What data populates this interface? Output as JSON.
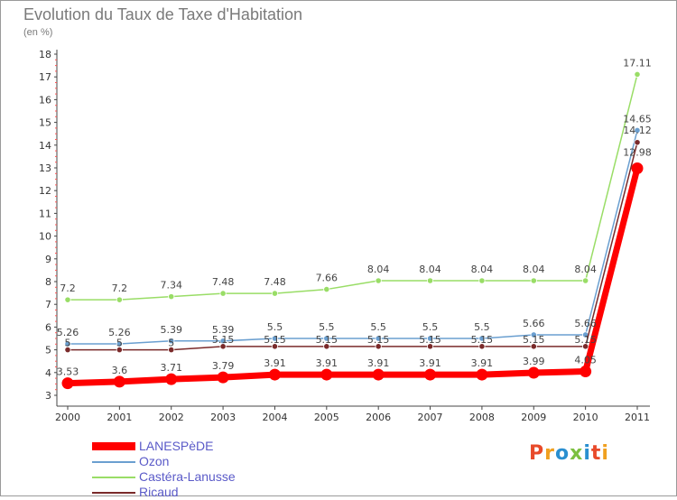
{
  "header": {
    "title": "Evolution du Taux de Taxe d'Habitation",
    "subtitle": "(en %)"
  },
  "chart_data": {
    "type": "line",
    "title": "Evolution du Taux de Taxe d'Habitation",
    "subtitle": "(en %)",
    "xlabel": "",
    "ylabel": "",
    "x": [
      "2000",
      "2001",
      "2002",
      "2003",
      "2004",
      "2005",
      "2006",
      "2007",
      "2008",
      "2009",
      "2010",
      "2011"
    ],
    "ylim": [
      3,
      18
    ],
    "yticks": [
      3,
      4,
      5,
      6,
      7,
      8,
      9,
      10,
      11,
      12,
      13,
      14,
      15,
      16,
      17,
      18
    ],
    "grid": false,
    "legend_position": "bottom-left",
    "series": [
      {
        "name": "LANESPèDE",
        "color": "#ff0000",
        "values": [
          3.53,
          3.6,
          3.71,
          3.79,
          3.91,
          3.91,
          3.91,
          3.91,
          3.91,
          3.99,
          4.05,
          12.98
        ],
        "labels": [
          "3.53",
          "3.6",
          "3.71",
          "3.79",
          "3.91",
          "3.91",
          "3.91",
          "3.91",
          "3.91",
          "3.99",
          "4.05",
          "12.98"
        ]
      },
      {
        "name": "Ozon",
        "color": "#6a9fd0",
        "values": [
          5.26,
          5.26,
          5.39,
          5.39,
          5.5,
          5.5,
          5.5,
          5.5,
          5.5,
          5.66,
          5.66,
          14.65
        ],
        "labels": [
          "5.26",
          "5.26",
          "5.39",
          "5.39",
          "5.5",
          "5.5",
          "5.5",
          "5.5",
          "5.5",
          "5.66",
          "5.66",
          "14.65"
        ]
      },
      {
        "name": "Castéra-Lanusse",
        "color": "#99dd66",
        "values": [
          7.2,
          7.2,
          7.34,
          7.48,
          7.48,
          7.66,
          8.04,
          8.04,
          8.04,
          8.04,
          8.04,
          17.11
        ],
        "labels": [
          "7.2",
          "7.2",
          "7.34",
          "7.48",
          "7.48",
          "7.66",
          "8.04",
          "8.04",
          "8.04",
          "8.04",
          "8.04",
          "17.11"
        ]
      },
      {
        "name": "Ricaud",
        "color": "#7a2a2a",
        "values": [
          5.0,
          5.0,
          5.0,
          5.15,
          5.15,
          5.15,
          5.15,
          5.15,
          5.15,
          5.15,
          5.15,
          14.12
        ],
        "labels": [
          "5",
          "5",
          "5",
          "5.15",
          "5.15",
          "5.15",
          "5.15",
          "5.15",
          "5.15",
          "5.15",
          "5.15",
          "14.12"
        ]
      }
    ]
  },
  "legend": {
    "items": [
      {
        "label": "LANESPèDE",
        "color": "#ff0000"
      },
      {
        "label": "Ozon",
        "color": "#6a9fd0"
      },
      {
        "label": "Castéra-Lanusse",
        "color": "#99dd66"
      },
      {
        "label": "Ricaud",
        "color": "#7a2a2a"
      }
    ]
  },
  "logo": {
    "text": "Proxiti",
    "colors": [
      "#e84a2a",
      "#f0a020",
      "#2a8fd0",
      "#7cc040",
      "#2a8fd0",
      "#e84a2a",
      "#f0a020"
    ]
  }
}
